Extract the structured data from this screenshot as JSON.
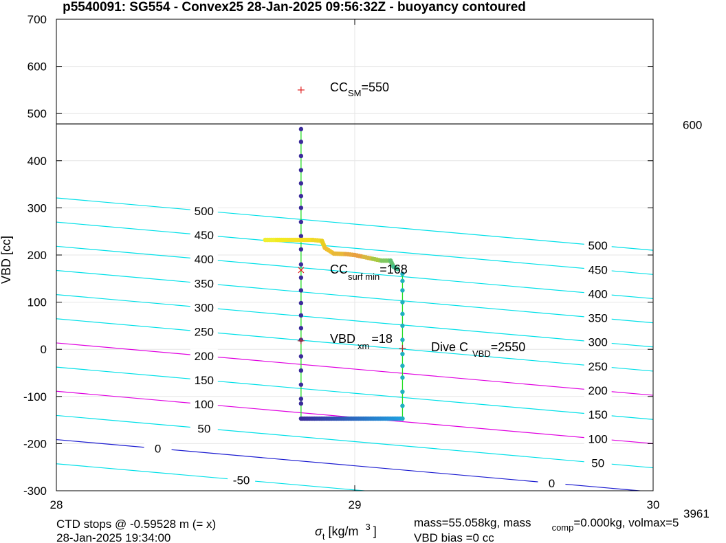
{
  "chart_data": {
    "type": "scatter",
    "title": "p5540091: SG554 - Convex25 28-Jan-2025 09:56:32Z - buoyancy contoured",
    "ylabel": "VBD [cc]",
    "xlabel_main": "σ",
    "xlabel_sub": "t",
    "xlabel_rest": " [kg/m",
    "xlabel_sup": "3",
    "xlabel_close": "]",
    "xlim": [
      28,
      30
    ],
    "ylim": [
      -300,
      700
    ],
    "x_ticks": [
      "28",
      "29",
      "30"
    ],
    "y_ticks": [
      "-300",
      "-200",
      "-100",
      "0",
      "100",
      "200",
      "300",
      "400",
      "500",
      "600",
      "700"
    ],
    "grid": true,
    "contours": [
      {
        "level": -50,
        "color": "#00e0e8",
        "left_label": "-50",
        "right_label": ""
      },
      {
        "level": 0,
        "color": "#1a1ad0",
        "left_label": "0",
        "right_label": "0"
      },
      {
        "level": 50,
        "color": "#00e0e8",
        "left_label": "50",
        "right_label": "50"
      },
      {
        "level": 100,
        "color": "#e000e0",
        "left_label": "100",
        "right_label": "100"
      },
      {
        "level": 150,
        "color": "#00e0e8",
        "left_label": "150",
        "right_label": "150"
      },
      {
        "level": 200,
        "color": "#e000e0",
        "left_label": "200",
        "right_label": "200"
      },
      {
        "level": 250,
        "color": "#00e0e8",
        "left_label": "250",
        "right_label": "250"
      },
      {
        "level": 300,
        "color": "#00e0e8",
        "left_label": "300",
        "right_label": "300"
      },
      {
        "level": 350,
        "color": "#00e0e8",
        "left_label": "350",
        "right_label": "350"
      },
      {
        "level": 400,
        "color": "#00e0e8",
        "left_label": "400",
        "right_label": "400"
      },
      {
        "level": 450,
        "color": "#00e0e8",
        "left_label": "450",
        "right_label": "450"
      },
      {
        "level": 500,
        "color": "#00e0e8",
        "left_label": "500",
        "right_label": "500"
      }
    ],
    "vbd_max_line": {
      "y": 478,
      "label": "600"
    },
    "markers": [
      {
        "name": "cc-sm-marker",
        "x": 28.82,
        "y": 550,
        "symbol": "+",
        "color": "#e02020"
      },
      {
        "name": "cc-surf-min-marker",
        "x": 28.82,
        "y": 168,
        "symbol": "x",
        "color": "#e02020"
      },
      {
        "name": "vbd-xm-marker",
        "x": 28.82,
        "y": 18,
        "symbol": "+",
        "color": "#b03030"
      },
      {
        "name": "dive-c-vbd-marker",
        "x": 29.16,
        "y": 2,
        "symbol": "+",
        "color": "#b03030"
      }
    ],
    "annotations": {
      "cc_sm": {
        "main": "CC",
        "sub": "SM",
        "rest": "=550"
      },
      "cc_surf_min": {
        "main": "CC",
        "sub": "surf min",
        "rest": "=168"
      },
      "vbd_xm": {
        "main": "VBD",
        "sub": "xm",
        "rest": "=18"
      },
      "dive_c_vbd": {
        "main": "Dive C",
        "sub": "VBD",
        "rest": "=2550"
      }
    },
    "descent_points": {
      "x": 28.82,
      "y": [
        467,
        440,
        410,
        380,
        352,
        325,
        300,
        270,
        240,
        212,
        180,
        152,
        125,
        98,
        72,
        45,
        20,
        -15,
        -45,
        -75,
        -105,
        -115
      ]
    },
    "bottom_points": {
      "x_start": 28.82,
      "x_end": 29.16,
      "y": -147
    },
    "ascent_points": {
      "x": 29.16,
      "y": [
        -147,
        -120,
        -90,
        -60,
        -35,
        -10,
        20,
        50,
        75,
        100,
        125,
        145,
        160
      ]
    },
    "surface_points": [
      {
        "x": 28.7,
        "y": 232
      },
      {
        "x": 28.74,
        "y": 232
      },
      {
        "x": 28.78,
        "y": 232
      },
      {
        "x": 28.82,
        "y": 232
      },
      {
        "x": 28.86,
        "y": 232
      },
      {
        "x": 28.89,
        "y": 230
      },
      {
        "x": 28.9,
        "y": 215
      },
      {
        "x": 28.93,
        "y": 203
      },
      {
        "x": 28.97,
        "y": 202
      },
      {
        "x": 29.0,
        "y": 200
      },
      {
        "x": 29.03,
        "y": 196
      },
      {
        "x": 29.06,
        "y": 192
      },
      {
        "x": 29.09,
        "y": 188
      },
      {
        "x": 29.12,
        "y": 188
      },
      {
        "x": 29.13,
        "y": 175
      },
      {
        "x": 29.15,
        "y": 168
      }
    ]
  },
  "footer": {
    "ctd_stops": "CTD stops @ -0.59528 m (= x)",
    "timestamp": "28-Jan-2025 19:34:00",
    "mass_prefix": "mass=55.058kg, mass",
    "mass_sub": "comp",
    "mass_rest": "=0.000kg, volmax=5",
    "vbd_bias": "VBD bias =0 cc",
    "corner_number": "3961"
  },
  "colors": {
    "axis": "#000000",
    "grid": "#e6e6e6",
    "trace": "#22dd22",
    "descent_dot": "#3a2a9a",
    "bottom_dot_start": "#3a2a9a",
    "bottom_dot_end": "#1fa0e0",
    "ascent_dot": "#1fb0c0"
  }
}
